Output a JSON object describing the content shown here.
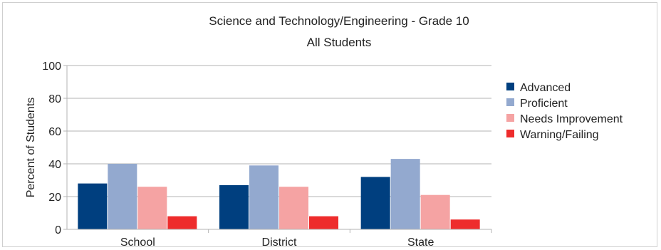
{
  "chart_data": {
    "type": "bar",
    "title": "Science and Technology/Engineering - Grade 10",
    "subtitle": "All Students",
    "xlabel": "",
    "ylabel": "Percent of Students",
    "ylim": [
      0,
      100
    ],
    "yticks": [
      0,
      20,
      40,
      60,
      80,
      100
    ],
    "grid": true,
    "legend_position": "right",
    "categories": [
      "School",
      "District",
      "State"
    ],
    "series": [
      {
        "name": "Advanced",
        "color": "#003f7f",
        "values": [
          28,
          27,
          32
        ]
      },
      {
        "name": "Proficient",
        "color": "#93a9cf",
        "values": [
          40,
          39,
          43
        ]
      },
      {
        "name": "Needs Improvement",
        "color": "#f5a3a3",
        "values": [
          26,
          26,
          21
        ]
      },
      {
        "name": "Warning/Failing",
        "color": "#ee2c2c",
        "values": [
          8,
          8,
          6
        ]
      }
    ]
  }
}
